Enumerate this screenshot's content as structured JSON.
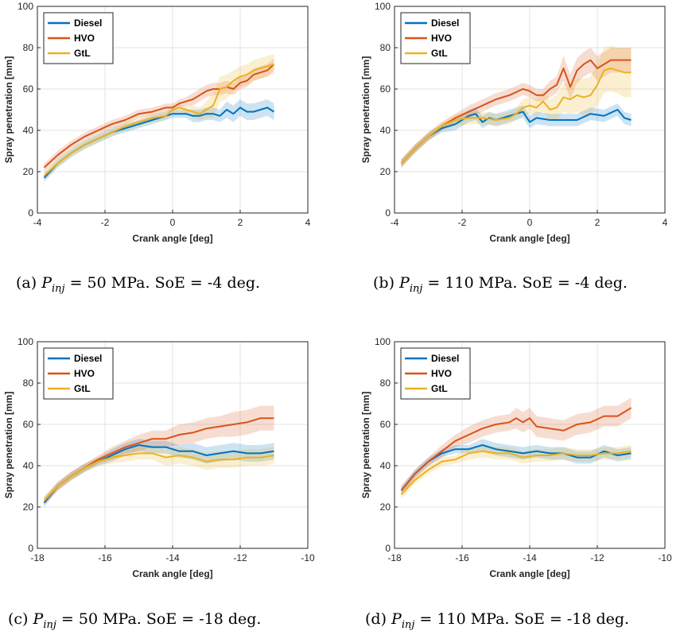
{
  "series_colors": {
    "Diesel": "#0072BD",
    "HVO": "#D95319",
    "GtL": "#EDB120"
  },
  "chart_data": [
    {
      "type": "line",
      "panel_label": "(a)",
      "caption_prefix": "P",
      "caption_sub": "inj",
      "caption_rest": " = 50 MPa.  SoE = -4 deg.",
      "xlabel": "Crank angle [deg]",
      "ylabel": "Spray penetration [mm]",
      "xlim": [
        -4,
        4
      ],
      "ylim": [
        0,
        100
      ],
      "xticks": [
        -4,
        -2,
        0,
        2,
        4
      ],
      "yticks": [
        0,
        20,
        40,
        60,
        80,
        100
      ],
      "grid": true,
      "legend_position": "top-left",
      "series": [
        {
          "name": "Diesel",
          "x": [
            -3.8,
            -3.4,
            -3.0,
            -2.6,
            -2.2,
            -1.8,
            -1.4,
            -1.0,
            -0.6,
            -0.2,
            0.0,
            0.2,
            0.4,
            0.6,
            0.8,
            1.0,
            1.2,
            1.4,
            1.6,
            1.8,
            2.0,
            2.2,
            2.4,
            2.6,
            2.8,
            3.0
          ],
          "y": [
            17,
            24,
            29,
            33,
            36,
            39,
            41,
            43,
            45,
            47,
            48,
            48,
            48,
            47,
            47,
            48,
            48,
            47,
            50,
            48,
            51,
            49,
            49,
            50,
            51,
            49
          ],
          "band": [
            2,
            2,
            2,
            2,
            2,
            2,
            2,
            2,
            2,
            2,
            2,
            2,
            2,
            3,
            3,
            3,
            3,
            3,
            4,
            4,
            4,
            4,
            4,
            4,
            4,
            4
          ]
        },
        {
          "name": "HVO",
          "x": [
            -3.8,
            -3.4,
            -3.0,
            -2.6,
            -2.2,
            -1.8,
            -1.4,
            -1.0,
            -0.6,
            -0.2,
            0.0,
            0.2,
            0.4,
            0.6,
            0.8,
            1.0,
            1.2,
            1.4,
            1.6,
            1.8,
            2.0,
            2.2,
            2.4,
            2.6,
            2.8,
            3.0
          ],
          "y": [
            22,
            28,
            33,
            37,
            40,
            43,
            45,
            48,
            49,
            51,
            51,
            53,
            54,
            55,
            57,
            59,
            60,
            60,
            61,
            60,
            63,
            64,
            67,
            68,
            69,
            72
          ],
          "band": [
            2,
            2,
            2,
            2,
            2,
            2,
            2,
            2,
            2,
            2,
            2,
            2,
            2,
            3,
            3,
            3,
            3,
            3,
            3,
            3,
            3,
            3,
            3,
            3,
            3,
            3
          ]
        },
        {
          "name": "GtL",
          "x": [
            -3.8,
            -3.4,
            -3.0,
            -2.6,
            -2.2,
            -1.8,
            -1.4,
            -1.0,
            -0.6,
            -0.2,
            0.0,
            0.2,
            0.4,
            0.6,
            0.8,
            1.0,
            1.2,
            1.4,
            1.6,
            1.8,
            2.0,
            2.2,
            2.4,
            2.6,
            2.8,
            3.0
          ],
          "y": [
            18,
            24,
            29,
            33,
            36,
            39,
            42,
            44,
            46,
            47,
            50,
            51,
            50,
            49,
            48,
            50,
            52,
            60,
            61,
            64,
            66,
            67,
            69,
            70,
            71,
            72
          ],
          "band": [
            2,
            2,
            2,
            2,
            2,
            2,
            2,
            2,
            2,
            2,
            2,
            2,
            2,
            3,
            3,
            4,
            6,
            6,
            6,
            5,
            5,
            5,
            5,
            5,
            5,
            5
          ]
        }
      ]
    },
    {
      "type": "line",
      "panel_label": "(b)",
      "caption_prefix": "P",
      "caption_sub": "inj",
      "caption_rest": " = 110 MPa.  SoE = -4 deg.",
      "xlabel": "Crank angle [deg]",
      "ylabel": "Spray penetration [mm]",
      "xlim": [
        -4,
        4
      ],
      "ylim": [
        0,
        100
      ],
      "xticks": [
        -4,
        -2,
        0,
        2,
        4
      ],
      "yticks": [
        0,
        20,
        40,
        60,
        80,
        100
      ],
      "grid": true,
      "legend_position": "top-left",
      "series": [
        {
          "name": "Diesel",
          "x": [
            -3.8,
            -3.4,
            -3.0,
            -2.6,
            -2.2,
            -1.8,
            -1.6,
            -1.4,
            -1.2,
            -1.0,
            -0.8,
            -0.6,
            -0.4,
            -0.2,
            0.0,
            0.2,
            0.6,
            1.0,
            1.4,
            1.8,
            2.2,
            2.6,
            2.8,
            3.0
          ],
          "y": [
            24,
            31,
            37,
            41,
            43,
            47,
            48,
            44,
            46,
            45,
            46,
            47,
            48,
            49,
            44,
            46,
            45,
            45,
            45,
            48,
            47,
            50,
            46,
            45
          ],
          "band": [
            2,
            2,
            2,
            2,
            3,
            3,
            3,
            3,
            3,
            3,
            3,
            3,
            3,
            3,
            3,
            3,
            3,
            3,
            3,
            3,
            3,
            3,
            3,
            3
          ]
        },
        {
          "name": "HVO",
          "x": [
            -3.8,
            -3.4,
            -3.0,
            -2.6,
            -2.2,
            -1.8,
            -1.4,
            -1.0,
            -0.6,
            -0.2,
            0.0,
            0.2,
            0.4,
            0.6,
            0.8,
            1.0,
            1.2,
            1.4,
            1.6,
            1.8,
            2.0,
            2.4,
            2.8,
            3.0
          ],
          "y": [
            24,
            31,
            37,
            42,
            46,
            49,
            52,
            55,
            57,
            60,
            59,
            57,
            57,
            60,
            62,
            70,
            61,
            69,
            72,
            74,
            70,
            74,
            74,
            74
          ],
          "band": [
            2,
            2,
            2,
            2,
            2,
            3,
            3,
            3,
            3,
            3,
            3,
            3,
            3,
            4,
            4,
            6,
            6,
            6,
            6,
            6,
            6,
            6,
            6,
            6
          ]
        },
        {
          "name": "GtL",
          "x": [
            -3.8,
            -3.4,
            -3.0,
            -2.6,
            -2.2,
            -1.8,
            -1.4,
            -1.0,
            -0.6,
            -0.4,
            -0.2,
            0.0,
            0.2,
            0.4,
            0.6,
            0.8,
            1.0,
            1.2,
            1.4,
            1.6,
            1.8,
            2.0,
            2.2,
            2.4,
            2.6,
            2.8,
            3.0
          ],
          "y": [
            24,
            31,
            37,
            42,
            45,
            46,
            46,
            45,
            46,
            48,
            51,
            52,
            51,
            54,
            50,
            51,
            56,
            55,
            57,
            56,
            57,
            62,
            69,
            70,
            69,
            68,
            68
          ],
          "band": [
            2,
            2,
            2,
            2,
            3,
            3,
            3,
            3,
            3,
            3,
            4,
            4,
            4,
            5,
            5,
            6,
            7,
            7,
            8,
            9,
            9,
            10,
            11,
            11,
            11,
            12,
            12
          ]
        }
      ]
    },
    {
      "type": "line",
      "panel_label": "(c)",
      "caption_prefix": "P",
      "caption_sub": "inj",
      "caption_rest": " = 50 MPa.  SoE = -18 deg.",
      "xlabel": "Crank angle [deg]",
      "ylabel": "Spray penetration [mm]",
      "xlim": [
        -18,
        -10
      ],
      "ylim": [
        0,
        100
      ],
      "xticks": [
        -18,
        -16,
        -14,
        -12,
        -10
      ],
      "yticks": [
        0,
        20,
        40,
        60,
        80,
        100
      ],
      "grid": true,
      "legend_position": "top-left",
      "series": [
        {
          "name": "Diesel",
          "x": [
            -17.8,
            -17.4,
            -17.0,
            -16.6,
            -16.2,
            -15.8,
            -15.4,
            -15.0,
            -14.6,
            -14.2,
            -13.8,
            -13.4,
            -13.0,
            -12.6,
            -12.2,
            -11.8,
            -11.4,
            -11.0
          ],
          "y": [
            22,
            30,
            35,
            39,
            42,
            45,
            48,
            50,
            49,
            49,
            47,
            47,
            45,
            46,
            47,
            46,
            46,
            47
          ],
          "band": [
            2,
            2,
            2,
            2,
            2,
            3,
            3,
            3,
            3,
            3,
            3,
            4,
            4,
            4,
            4,
            4,
            4,
            4
          ]
        },
        {
          "name": "HVO",
          "x": [
            -17.8,
            -17.4,
            -17.0,
            -16.6,
            -16.2,
            -15.8,
            -15.4,
            -15.0,
            -14.6,
            -14.2,
            -13.8,
            -13.4,
            -13.0,
            -12.6,
            -12.2,
            -11.8,
            -11.4,
            -11.0
          ],
          "y": [
            23,
            30,
            35,
            39,
            43,
            46,
            49,
            51,
            53,
            53,
            55,
            56,
            58,
            59,
            60,
            61,
            63,
            63
          ],
          "band": [
            2,
            2,
            2,
            2,
            2,
            3,
            3,
            4,
            4,
            4,
            5,
            5,
            5,
            5,
            6,
            6,
            6,
            6
          ]
        },
        {
          "name": "GtL",
          "x": [
            -17.8,
            -17.4,
            -17.0,
            -16.6,
            -16.2,
            -15.8,
            -15.4,
            -15.0,
            -14.6,
            -14.2,
            -13.8,
            -13.4,
            -13.0,
            -12.6,
            -12.2,
            -11.8,
            -11.4,
            -11.0
          ],
          "y": [
            23,
            30,
            35,
            39,
            42,
            44,
            45,
            46,
            46,
            44,
            45,
            44,
            42,
            43,
            43,
            44,
            44,
            45
          ],
          "band": [
            2,
            2,
            2,
            2,
            2,
            3,
            3,
            3,
            3,
            4,
            4,
            4,
            4,
            4,
            4,
            4,
            4,
            4
          ]
        }
      ]
    },
    {
      "type": "line",
      "panel_label": "(d)",
      "caption_prefix": "P",
      "caption_sub": "inj",
      "caption_rest": " = 110 MPa.  SoE = -18 deg.",
      "xlabel": "Crank angle [deg]",
      "ylabel": "Spray penetration [mm]",
      "xlim": [
        -18,
        -10
      ],
      "ylim": [
        0,
        100
      ],
      "xticks": [
        -18,
        -16,
        -14,
        -12,
        -10
      ],
      "yticks": [
        0,
        20,
        40,
        60,
        80,
        100
      ],
      "grid": true,
      "legend_position": "top-left",
      "series": [
        {
          "name": "Diesel",
          "x": [
            -17.8,
            -17.4,
            -17.0,
            -16.6,
            -16.2,
            -15.8,
            -15.4,
            -15.0,
            -14.6,
            -14.2,
            -13.8,
            -13.4,
            -13.0,
            -12.6,
            -12.2,
            -11.8,
            -11.4,
            -11.0
          ],
          "y": [
            28,
            36,
            42,
            46,
            48,
            48,
            50,
            48,
            47,
            46,
            47,
            46,
            46,
            44,
            44,
            47,
            45,
            46
          ],
          "band": [
            2,
            2,
            2,
            2,
            2,
            2,
            3,
            3,
            3,
            3,
            3,
            3,
            3,
            3,
            3,
            3,
            3,
            3
          ]
        },
        {
          "name": "HVO",
          "x": [
            -17.8,
            -17.4,
            -17.0,
            -16.6,
            -16.2,
            -15.8,
            -15.4,
            -15.0,
            -14.6,
            -14.4,
            -14.2,
            -14.0,
            -13.8,
            -13.4,
            -13.0,
            -12.6,
            -12.2,
            -11.8,
            -11.4,
            -11.0
          ],
          "y": [
            28,
            36,
            42,
            47,
            52,
            55,
            58,
            60,
            61,
            63,
            61,
            63,
            59,
            58,
            57,
            60,
            61,
            64,
            64,
            68
          ],
          "band": [
            2,
            2,
            2,
            3,
            3,
            4,
            4,
            4,
            4,
            5,
            5,
            5,
            5,
            5,
            5,
            5,
            5,
            5,
            5,
            5
          ]
        },
        {
          "name": "GtL",
          "x": [
            -17.8,
            -17.4,
            -17.0,
            -16.6,
            -16.2,
            -15.8,
            -15.4,
            -15.0,
            -14.6,
            -14.2,
            -13.8,
            -13.4,
            -13.0,
            -12.6,
            -12.2,
            -11.8,
            -11.4,
            -11.0
          ],
          "y": [
            26,
            33,
            38,
            42,
            43,
            46,
            47,
            46,
            46,
            44,
            45,
            45,
            46,
            45,
            45,
            46,
            46,
            47
          ],
          "band": [
            2,
            2,
            2,
            2,
            2,
            3,
            3,
            3,
            3,
            3,
            3,
            3,
            3,
            3,
            3,
            3,
            3,
            3
          ]
        }
      ]
    }
  ]
}
